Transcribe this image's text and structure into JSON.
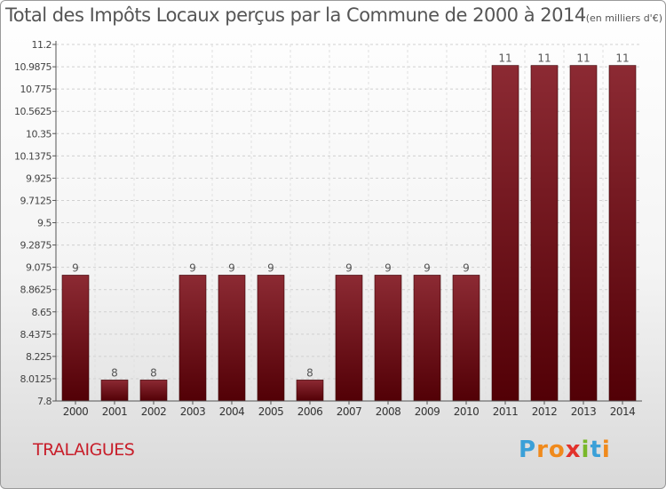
{
  "header": {
    "title": "Total des Impôts Locaux perçus par la Commune de 2000 à 2014",
    "unit": "(en milliers d'€)"
  },
  "footer": {
    "commune": "TRALAIGUES",
    "logo_letters": [
      "P",
      "r",
      "o",
      "x",
      "i",
      "t",
      "i"
    ],
    "logo_colors": [
      "#3aa0d8",
      "#f08a1c",
      "#f08a1c",
      "#e2322c",
      "#79b829",
      "#3aa0d8",
      "#f08a1c"
    ]
  },
  "chart_data": {
    "type": "bar",
    "title": "Total des Impôts Locaux perçus par la Commune de 2000 à 2014",
    "xlabel": "",
    "ylabel": "",
    "categories": [
      "2000",
      "2001",
      "2002",
      "2003",
      "2004",
      "2005",
      "2006",
      "2007",
      "2008",
      "2009",
      "2010",
      "2011",
      "2012",
      "2013",
      "2014"
    ],
    "values": [
      9,
      8,
      8,
      9,
      9,
      9,
      8,
      9,
      9,
      9,
      9,
      11,
      11,
      11,
      11
    ],
    "labels": [
      "9",
      "8",
      "8",
      "9",
      "9",
      "9",
      "8",
      "9",
      "9",
      "9",
      "9",
      "11",
      "11",
      "11",
      "11"
    ],
    "ylim": [
      7.8,
      11.2
    ],
    "yticks": [
      "11.2",
      "10.9875",
      "10.775",
      "10.5625",
      "10.35",
      "10.1375",
      "9.925",
      "9.7125",
      "9.5",
      "9.2875",
      "9.075",
      "8.8625",
      "8.65",
      "8.4375",
      "8.225",
      "8.0125",
      "7.8"
    ],
    "grid": true,
    "bar_color": "#7a0f16"
  }
}
